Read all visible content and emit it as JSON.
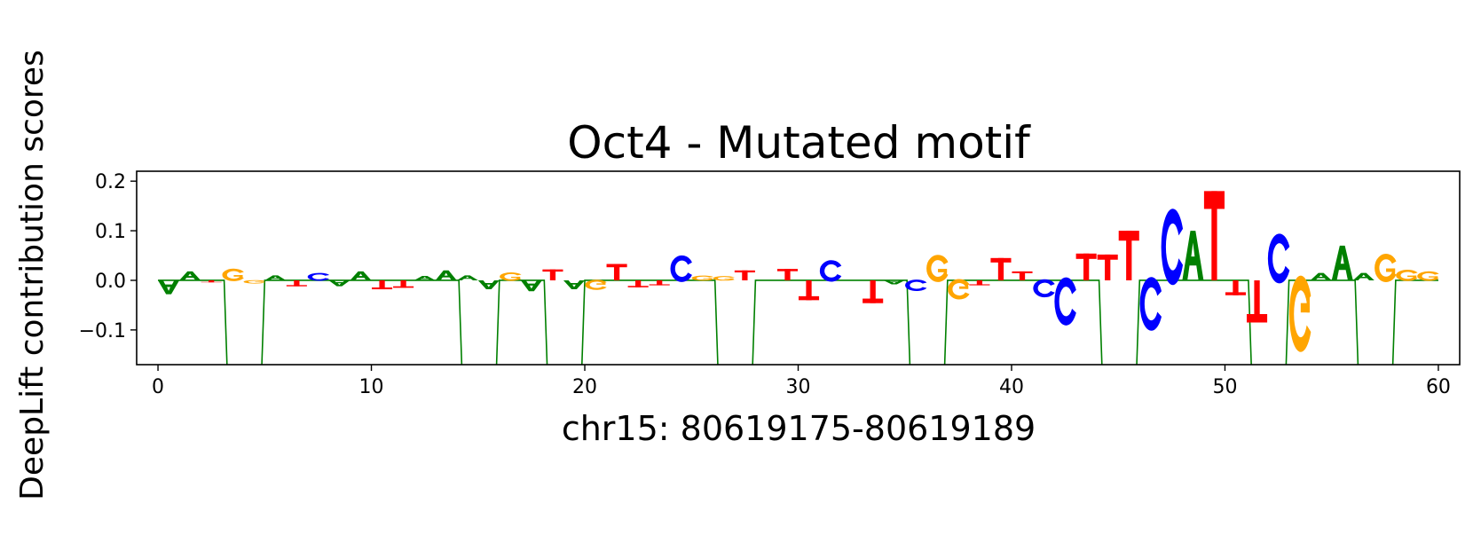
{
  "chart_data": {
    "type": "sequence-logo",
    "title": "Oct4 - Mutated motif",
    "xlabel": "chr15: 80619175-80619189",
    "ylabel": "DeepLift contribution scores",
    "xlim": [
      -1,
      61
    ],
    "ylim": [
      -0.17,
      0.22
    ],
    "xticks": [
      0,
      10,
      20,
      30,
      40,
      50,
      60
    ],
    "yticks": [
      -0.1,
      0.0,
      0.1,
      0.2
    ],
    "ytick_labels": [
      "−0.1",
      "0.0",
      "0.1",
      "0.2"
    ],
    "base_colors": {
      "A": "#008000",
      "C": "#0000ff",
      "G": "#ffa500",
      "T": "#ff0000"
    },
    "trace_color": "#008000",
    "trace": {
      "baseline": 0.0,
      "low": -0.17,
      "drops": [
        [
          3.2,
          4.9
        ],
        [
          14.2,
          15.9
        ],
        [
          18.2,
          19.9
        ],
        [
          26.2,
          27.9
        ],
        [
          35.2,
          36.9
        ],
        [
          44.2,
          45.9
        ],
        [
          51.2,
          52.9
        ],
        [
          56.2,
          57.9
        ]
      ]
    },
    "letters": [
      {
        "x": 0.5,
        "base": "A",
        "value": -0.028
      },
      {
        "x": 1.5,
        "base": "A",
        "value": 0.018
      },
      {
        "x": 2.5,
        "base": "T",
        "value": -0.004
      },
      {
        "x": 3.5,
        "base": "G",
        "value": 0.022
      },
      {
        "x": 4.5,
        "base": "G",
        "value": -0.006
      },
      {
        "x": 5.5,
        "base": "A",
        "value": 0.01
      },
      {
        "x": 6.5,
        "base": "T",
        "value": -0.012
      },
      {
        "x": 7.5,
        "base": "C",
        "value": 0.014
      },
      {
        "x": 8.5,
        "base": "A",
        "value": -0.012
      },
      {
        "x": 9.5,
        "base": "A",
        "value": 0.018
      },
      {
        "x": 10.5,
        "base": "T",
        "value": -0.018
      },
      {
        "x": 11.5,
        "base": "T",
        "value": -0.015
      },
      {
        "x": 12.5,
        "base": "A",
        "value": 0.009
      },
      {
        "x": 13.5,
        "base": "A",
        "value": 0.02
      },
      {
        "x": 14.5,
        "base": "A",
        "value": 0.01
      },
      {
        "x": 15.5,
        "base": "A",
        "value": -0.018
      },
      {
        "x": 16.5,
        "base": "G",
        "value": 0.015
      },
      {
        "x": 17.5,
        "base": "A",
        "value": -0.022
      },
      {
        "x": 18.5,
        "base": "T",
        "value": 0.022
      },
      {
        "x": 19.5,
        "base": "A",
        "value": -0.018
      },
      {
        "x": 20.5,
        "base": "G",
        "value": -0.018
      },
      {
        "x": 21.5,
        "base": "T",
        "value": 0.033
      },
      {
        "x": 22.5,
        "base": "T",
        "value": -0.014
      },
      {
        "x": 23.5,
        "base": "T",
        "value": -0.01
      },
      {
        "x": 24.5,
        "base": "C",
        "value": 0.047
      },
      {
        "x": 25.5,
        "base": "G",
        "value": 0.009
      },
      {
        "x": 26.5,
        "base": "G",
        "value": 0.008
      },
      {
        "x": 27.5,
        "base": "T",
        "value": 0.02
      },
      {
        "x": 29.5,
        "base": "T",
        "value": 0.023
      },
      {
        "x": 30.5,
        "base": "T",
        "value": -0.04
      },
      {
        "x": 31.5,
        "base": "C",
        "value": 0.038
      },
      {
        "x": 33.5,
        "base": "T",
        "value": -0.046
      },
      {
        "x": 34.5,
        "base": "A",
        "value": -0.008
      },
      {
        "x": 35.5,
        "base": "C",
        "value": -0.02
      },
      {
        "x": 36.5,
        "base": "G",
        "value": 0.048
      },
      {
        "x": 37.5,
        "base": "G",
        "value": -0.036
      },
      {
        "x": 38.5,
        "base": "T",
        "value": -0.01
      },
      {
        "x": 39.5,
        "base": "T",
        "value": 0.045
      },
      {
        "x": 40.5,
        "base": "T",
        "value": 0.018
      },
      {
        "x": 41.5,
        "base": "C",
        "value": -0.032
      },
      {
        "x": 42.5,
        "base": "C",
        "value": -0.085
      },
      {
        "x": 43.5,
        "base": "T",
        "value": 0.054
      },
      {
        "x": 44.5,
        "base": "T",
        "value": 0.052
      },
      {
        "x": 45.5,
        "base": "T",
        "value": 0.1
      },
      {
        "x": 46.5,
        "base": "C",
        "value": -0.095
      },
      {
        "x": 47.5,
        "base": "C",
        "value": 0.135
      },
      {
        "x": 48.5,
        "base": "A",
        "value": 0.1
      },
      {
        "x": 49.5,
        "base": "T",
        "value": 0.18
      },
      {
        "x": 50.5,
        "base": "T",
        "value": -0.03
      },
      {
        "x": 51.5,
        "base": "T",
        "value": -0.085
      },
      {
        "x": 52.5,
        "base": "C",
        "value": 0.088
      },
      {
        "x": 53.5,
        "base": "G",
        "value": -0.135
      },
      {
        "x": 54.5,
        "base": "A",
        "value": 0.015
      },
      {
        "x": 55.5,
        "base": "A",
        "value": 0.07
      },
      {
        "x": 56.5,
        "base": "A",
        "value": 0.015
      },
      {
        "x": 57.5,
        "base": "G",
        "value": 0.05
      },
      {
        "x": 58.5,
        "base": "G",
        "value": 0.02
      },
      {
        "x": 59.5,
        "base": "G",
        "value": 0.017
      }
    ]
  }
}
